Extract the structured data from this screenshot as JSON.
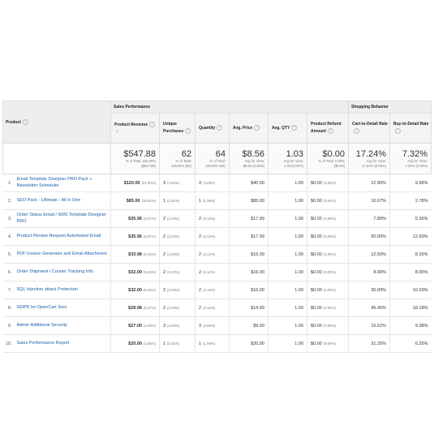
{
  "groups": {
    "sales_performance": "Sales Performance",
    "shopping_behavior": "Shopping Behavior"
  },
  "columns": {
    "product": "Product",
    "revenue": "Product Revenue",
    "unique": "Unique Purchases",
    "quantity": "Quantity",
    "avg_price": "Avg. Price",
    "avg_qty": "Avg. QTY",
    "refund": "Product Refund Amount",
    "cart_detail": "Cart-to-Detail Rate",
    "buy_detail": "Buy-to-Detail Rate"
  },
  "totals": {
    "revenue": "$547.88",
    "revenue_sub1": "% of Total: 100.00%",
    "revenue_sub2": "($547.88)",
    "unique": "62",
    "unique_sub1": "% of Total:",
    "unique_sub2": "100.00% (62)",
    "quantity": "64",
    "quantity_sub1": "% of Total:",
    "quantity_sub2": "100.00% (64)",
    "avg_price": "$8.56",
    "avg_price_sub1": "Avg for View:",
    "avg_price_sub2": "$8.56 (0.00%)",
    "avg_qty": "1.03",
    "avg_qty_sub1": "Avg for View:",
    "avg_qty_sub2": "1.03 (0.00%)",
    "refund": "$0.00",
    "refund_sub1": "% of Total: 0.00%",
    "refund_sub2": "($0.00)",
    "cart_detail": "17.24%",
    "cart_detail_sub1": "Avg for View:",
    "cart_detail_sub2": "17.24% (0.00%)",
    "buy_detail": "7.32%",
    "buy_detail_sub1": "Avg for View:",
    "buy_detail_sub2": "7.32% (0.00%)"
  },
  "rows": [
    {
      "idx": "1.",
      "product": "Email Template Designer PRO Pack + Newsletter Scheduler",
      "revenue": "$120.00",
      "revenue_pct": "(21.90%)",
      "unique": "3",
      "unique_pct": "(4.84%)",
      "quantity": "3",
      "quantity_pct": "(4.69%)",
      "avg_price": "$40.00",
      "avg_qty": "1.00",
      "refund": "$0.00",
      "refund_pct": "(0.00%)",
      "cart_detail": "12.90%",
      "buy_detail": "9.68%"
    },
    {
      "idx": "2.",
      "product": "SEO Pack - Ultimate - All in One",
      "revenue": "$85.00",
      "revenue_pct": "(15.51%)",
      "unique": "1",
      "unique_pct": "(1.61%)",
      "quantity": "1",
      "quantity_pct": "(1.56%)",
      "avg_price": "$85.00",
      "avg_qty": "1.00",
      "refund": "$0.00",
      "refund_pct": "(0.00%)",
      "cart_detail": "16.67%",
      "buy_detail": "2.78%"
    },
    {
      "idx": "3.",
      "product": "Order Status Email / SMS Template Designer PRO",
      "revenue": "$35.96",
      "revenue_pct": "(6.57%)",
      "unique": "2",
      "unique_pct": "(3.23%)",
      "quantity": "2",
      "quantity_pct": "(3.12%)",
      "avg_price": "$17.99",
      "avg_qty": "1.00",
      "refund": "$0.00",
      "refund_pct": "(0.00%)",
      "cart_detail": "7.89%",
      "buy_detail": "5.26%"
    },
    {
      "idx": "4.",
      "product": "Product Review Request Automated Email",
      "revenue": "$35.96",
      "revenue_pct": "(6.57%)",
      "unique": "2",
      "unique_pct": "(3.23%)",
      "quantity": "2",
      "quantity_pct": "(3.12%)",
      "avg_price": "$17.99",
      "avg_qty": "1.00",
      "refund": "$0.00",
      "refund_pct": "(0.00%)",
      "cart_detail": "50.00%",
      "buy_detail": "12.50%"
    },
    {
      "idx": "5.",
      "product": "PDF Invoice Generator and Email Attachment",
      "revenue": "$33.98",
      "revenue_pct": "(6.20%)",
      "unique": "2",
      "unique_pct": "(3.23%)",
      "quantity": "2",
      "quantity_pct": "(3.12%)",
      "avg_price": "$16.99",
      "avg_qty": "1.00",
      "refund": "$0.00",
      "refund_pct": "(0.00%)",
      "cart_detail": "12.50%",
      "buy_detail": "8.33%"
    },
    {
      "idx": "6.",
      "product": "Order Shipment / Courier Tracking Info",
      "revenue": "$32.00",
      "revenue_pct": "(5.84%)",
      "unique": "2",
      "unique_pct": "(3.23%)",
      "quantity": "2",
      "quantity_pct": "(3.12%)",
      "avg_price": "$16.00",
      "avg_qty": "1.00",
      "refund": "$0.00",
      "refund_pct": "(0.00%)",
      "cart_detail": "8.00%",
      "buy_detail": "8.00%"
    },
    {
      "idx": "7.",
      "product": "SQL Injection attack Protection",
      "revenue": "$32.00",
      "revenue_pct": "(5.84%)",
      "unique": "2",
      "unique_pct": "(3.23%)",
      "quantity": "2",
      "quantity_pct": "(3.12%)",
      "avg_price": "$16.00",
      "avg_qty": "1.00",
      "refund": "$0.00",
      "refund_pct": "(0.00%)",
      "cart_detail": "30.00%",
      "buy_detail": "10.00%"
    },
    {
      "idx": "8.",
      "product": "GDPR for OpenCart 3xxx",
      "revenue": "$29.98",
      "revenue_pct": "(5.47%)",
      "unique": "2",
      "unique_pct": "(3.23%)",
      "quantity": "2",
      "quantity_pct": "(3.12%)",
      "avg_price": "$14.99",
      "avg_qty": "1.00",
      "refund": "$0.00",
      "refund_pct": "(0.00%)",
      "cart_detail": "45.45%",
      "buy_detail": "18.18%"
    },
    {
      "idx": "9.",
      "product": "Admin Additional Security",
      "revenue": "$27.00",
      "revenue_pct": "(4.93%)",
      "unique": "3",
      "unique_pct": "(4.84%)",
      "quantity": "3",
      "quantity_pct": "(4.69%)",
      "avg_price": "$9.00",
      "avg_qty": "1.00",
      "refund": "$0.00",
      "refund_pct": "(0.00%)",
      "cart_detail": "15.62%",
      "buy_detail": "9.38%"
    },
    {
      "idx": "10.",
      "product": "Sales Performance Report",
      "revenue": "$20.00",
      "revenue_pct": "(3.65%)",
      "unique": "1",
      "unique_pct": "(1.61%)",
      "quantity": "1",
      "quantity_pct": "(1.56%)",
      "avg_price": "$20.00",
      "avg_qty": "1.00",
      "refund": "$0.00",
      "refund_pct": "(0.00%)",
      "cart_detail": "31.25%",
      "buy_detail": "6.25%"
    }
  ],
  "icons": {
    "help": "help-circle-icon",
    "sort": "sort-descending-arrow-icon"
  },
  "colors": {
    "link": "#1a5fa8",
    "header_bg": "#eeeeee",
    "border": "#dcdcdc"
  }
}
